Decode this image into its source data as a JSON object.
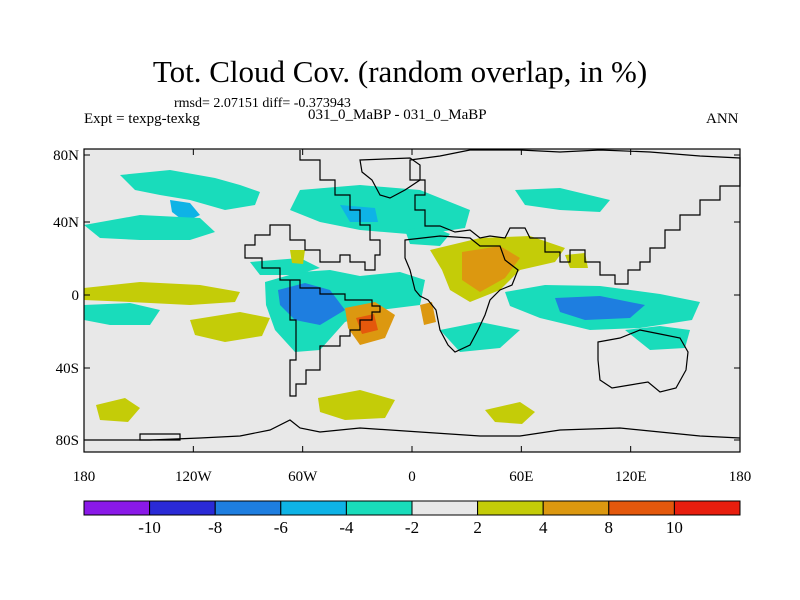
{
  "title": "Tot. Cloud Cov. (random overlap, in %)",
  "stats": "rmsd= 2.07151 diff= -0.373943",
  "expt_label": "Expt = texpg-texkg",
  "experiments": "031_0_MaBP - 031_0_MaBP",
  "season": "ANN",
  "lat_labels": [
    "80N",
    "40N",
    "0",
    "40S",
    "80S"
  ],
  "lon_labels": [
    "180",
    "120W",
    "60W",
    "0",
    "60E",
    "120E",
    "180"
  ],
  "colorbar": {
    "labels": [
      "-10",
      "-8",
      "-6",
      "-4",
      "-2",
      "2",
      "4",
      "8",
      "10"
    ],
    "colors": [
      "#8a19e8",
      "#2a2ad6",
      "#1e7ee0",
      "#0eb3e6",
      "#19dcbb",
      "#e8e8e8",
      "#c4cc08",
      "#dc9810",
      "#e4580c",
      "#e81e0e"
    ]
  },
  "palette": {
    "background": "#e8e8e8",
    "neg2": "#19dcbb",
    "neg4": "#0eb3e6",
    "neg6": "#1e7ee0",
    "pos2": "#c4cc08",
    "pos4": "#dc9810",
    "pos8": "#e4580c",
    "coast": "#000000"
  }
}
